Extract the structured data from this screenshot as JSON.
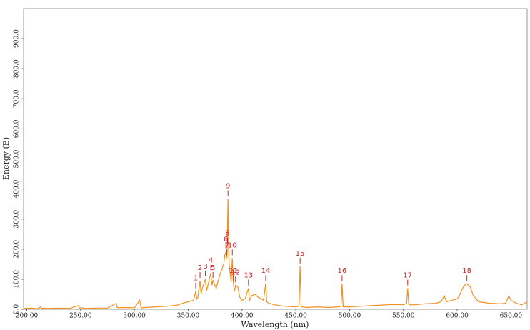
{
  "chart_data": {
    "type": "line",
    "x_label": "Wavelength (nm)",
    "y_label": "Energy (E)",
    "color": "#f39020",
    "label_color": "#c3272c",
    "xlim": [
      197,
      665
    ],
    "xticks": [
      {
        "value": 200,
        "label": "200.00"
      },
      {
        "value": 250,
        "label": "250.00"
      },
      {
        "value": 300,
        "label": "300.00"
      },
      {
        "value": 350,
        "label": "350.00"
      },
      {
        "value": 400,
        "label": "400.00"
      },
      {
        "value": 450,
        "label": "450.00"
      },
      {
        "value": 500,
        "label": "500.00"
      },
      {
        "value": 550,
        "label": "550.00"
      },
      {
        "value": 600,
        "label": "600.00"
      },
      {
        "value": 650,
        "label": "650.00"
      }
    ],
    "ylim": [
      0,
      1000
    ],
    "yticks": [
      {
        "value": 0,
        "label": "0.0"
      },
      {
        "value": 100,
        "label": "100.0"
      },
      {
        "value": 200,
        "label": "200.0"
      },
      {
        "value": 300,
        "label": "300.0"
      },
      {
        "value": 400,
        "label": "400.0"
      },
      {
        "value": 500,
        "label": "500.0"
      },
      {
        "value": 600,
        "label": "600.0"
      },
      {
        "value": 700,
        "label": "700.0"
      },
      {
        "value": 800,
        "label": "800.0"
      },
      {
        "value": 900,
        "label": "900.0"
      }
    ],
    "x": [
      197,
      205,
      210,
      213,
      214,
      215,
      220,
      230,
      240,
      248,
      249,
      250,
      255,
      265,
      275,
      283,
      284,
      285,
      290,
      300,
      305,
      306,
      307,
      310,
      320,
      330,
      340,
      345,
      350,
      355,
      357,
      358,
      359,
      361,
      362,
      363,
      366,
      367,
      368,
      371,
      372,
      373,
      376,
      379,
      381,
      383,
      384,
      385,
      386,
      387,
      387.5,
      388,
      389,
      390,
      391,
      392,
      393,
      394,
      396,
      398,
      400,
      403,
      406,
      407,
      409,
      412,
      415,
      418,
      420,
      422,
      423,
      425,
      430,
      440,
      450,
      453,
      454,
      455,
      460,
      470,
      480,
      490,
      492,
      493,
      494,
      500,
      510,
      520,
      530,
      540,
      550,
      553,
      554,
      555,
      560,
      570,
      580,
      585,
      588,
      590,
      595,
      600,
      602,
      605,
      607,
      609,
      612,
      615,
      620,
      630,
      640,
      645,
      648,
      650,
      655,
      660,
      665
    ],
    "values": [
      3,
      4,
      2,
      8,
      3,
      4,
      3,
      4,
      3,
      12,
      4,
      5,
      3,
      4,
      4,
      20,
      6,
      5,
      6,
      5,
      30,
      8,
      5,
      6,
      8,
      10,
      14,
      20,
      25,
      30,
      60,
      35,
      40,
      95,
      50,
      70,
      100,
      60,
      75,
      120,
      80,
      95,
      70,
      110,
      130,
      150,
      180,
      190,
      170,
      367,
      200,
      150,
      120,
      90,
      170,
      85,
      60,
      80,
      75,
      40,
      30,
      35,
      70,
      30,
      45,
      50,
      40,
      35,
      30,
      85,
      25,
      20,
      15,
      10,
      8,
      10,
      143,
      8,
      6,
      8,
      6,
      8,
      10,
      85,
      8,
      8,
      10,
      12,
      14,
      16,
      15,
      20,
      70,
      15,
      15,
      18,
      20,
      25,
      45,
      25,
      30,
      35,
      45,
      70,
      80,
      85,
      75,
      45,
      25,
      20,
      18,
      20,
      45,
      30,
      20,
      15,
      25
    ],
    "peaks": [
      {
        "label": "1",
        "x": 357,
        "y": 60
      },
      {
        "label": "2",
        "x": 361,
        "y": 95
      },
      {
        "label": "3",
        "x": 366,
        "y": 100
      },
      {
        "label": "4",
        "x": 371,
        "y": 120
      },
      {
        "label": "5",
        "x": 373,
        "y": 95
      },
      {
        "label": "6",
        "x": 385,
        "y": 190
      },
      {
        "label": "7",
        "x": 386,
        "y": 170
      },
      {
        "label": "8",
        "x": 386.5,
        "y": 210
      },
      {
        "label": "9",
        "x": 387,
        "y": 367
      },
      {
        "label": "10",
        "x": 391,
        "y": 170
      },
      {
        "label": "11",
        "x": 392,
        "y": 85
      },
      {
        "label": "12",
        "x": 394,
        "y": 80
      },
      {
        "label": "13",
        "x": 406,
        "y": 70
      },
      {
        "label": "14",
        "x": 422,
        "y": 85
      },
      {
        "label": "15",
        "x": 454,
        "y": 143
      },
      {
        "label": "16",
        "x": 493,
        "y": 85
      },
      {
        "label": "17",
        "x": 554,
        "y": 70
      },
      {
        "label": "18",
        "x": 609,
        "y": 85
      }
    ]
  }
}
